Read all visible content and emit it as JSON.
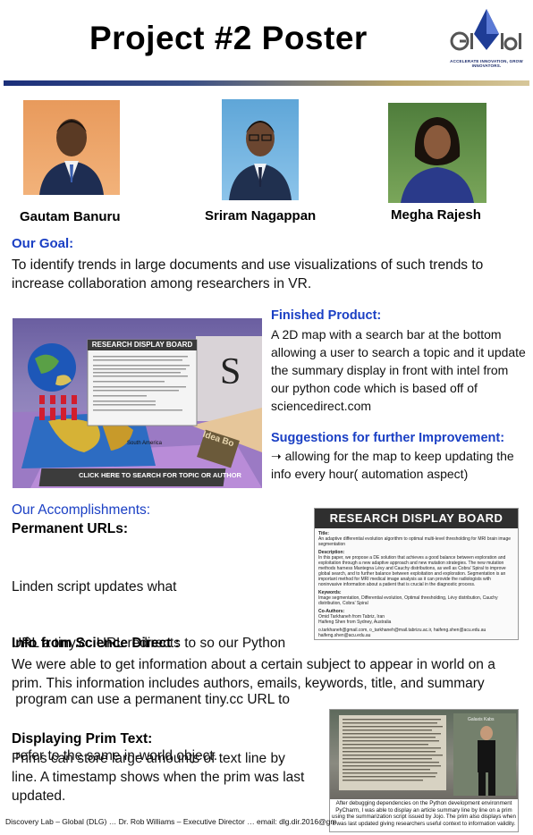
{
  "header": {
    "title": "Project #2 Poster",
    "logo_text": "GLOBAL",
    "logo_tagline": "ACCELERATE INNOVATION, GROW INNOVATORS."
  },
  "team": [
    {
      "name": "Gautam Banuru"
    },
    {
      "name": "Sriram Nagappan"
    },
    {
      "name": "Megha Rajesh"
    }
  ],
  "goal": {
    "heading": "Our Goal:",
    "text": "To identify trends in large documents and use visualizations of such trends to increase collaboration among researchers in VR."
  },
  "product_image": {
    "board_title": "RESEARCH DISPLAY BOARD",
    "map_label": "South America",
    "search_bar": "CLICK HERE TO SEARCH FOR TOPIC OR AUTHOR",
    "sign_text": "Idea Bo"
  },
  "finished": {
    "heading": "Finished Product:",
    "text": "A 2D map with a search bar at the bottom allowing a user to search a topic and it update the summary display in front with intel from our python code which is based off of sciencedirect.com"
  },
  "suggestions": {
    "heading": "Suggestions for further Improvement:",
    "text": "➝ allowing for the map to keep updating the info every hour( automation aspect)"
  },
  "accomplishments": {
    "heading": "Our Accomplishments:",
    "permanent": {
      "heading": "Permanent URLs:",
      "lines": [
        "Linden script updates what",
        "URL a tiny.cc URL redirects to so our Python",
        " program can use a permanent tiny.cc URL to",
        " refer to the same in-world object."
      ]
    },
    "science": {
      "heading": "Info from Science Direct :",
      "text": "We were able to get information about a certain subject to appear in world on a prim. This information includes authors, emails, keywords, title,  and summary"
    },
    "prim": {
      "heading": "Displaying Prim Text:",
      "text": "Prims can store large amounts of text line by line. A timestamp shows when the prim was last updated."
    }
  },
  "board_screenshot": {
    "title": "RESEARCH DISPLAY BOARD",
    "title_label": "Title:",
    "title_text": "An adaptive differential evolution algorithm to optimal multi-level thresholding for MRI brain image segmentation",
    "description_label": "Description:",
    "description_text": "In this paper, we propose a DE solution that achieves a good balance between exploration and exploitation through a new adaptive approach and new mutation strategies. The new mutation methods harness Mantegna Lévy and Cauchy distributions, as well as Cobra' Spiral to improve global search, and to further balance between exploitation and exploration. Segmentation is an important method for MRI medical image analysis as it can provide the radiologists with noninvasive information about a patient that is crucial in the diagnostic process.",
    "keywords_label": "Keywords:",
    "keywords_text": "Image segmentation, Differential evolution, Optimal thresholding, Lévy distribution, Cauchy distribution, Cobra' Spiral",
    "coauthors_label": "Co-Authors:",
    "coauthors_text": "Omid Tarkhaneh from Tabriz, Iran\nHaifeng Shen from Sydney, Australia",
    "emails_text": "o.tarkhaneh@gmail.com, o_tarkhaneh@mail.tabrizu.ac.ir, haifeng.shen@acu.edu.au\nhaifeng.shen@acu.edu.au"
  },
  "prim_shot": {
    "label": "Galaxis Kabs",
    "caption": "After debugging dependencies on the Python development environment PyCharm, I was able to display an article summary line by line on a prim using the summarization script issued by Jojo. The prim also displays when it was last updated giving researchers useful context to information validity."
  },
  "footer": {
    "text": "Discovery Lab – Global (DLG) … Dr. Rob Williams – Executive Director … email: dlg.dir.2016@gmail.co"
  },
  "colors": {
    "heading_blue": "#1a3fc4",
    "band_navy": "#1b2f7a",
    "band_gold": "#d7c79a"
  }
}
